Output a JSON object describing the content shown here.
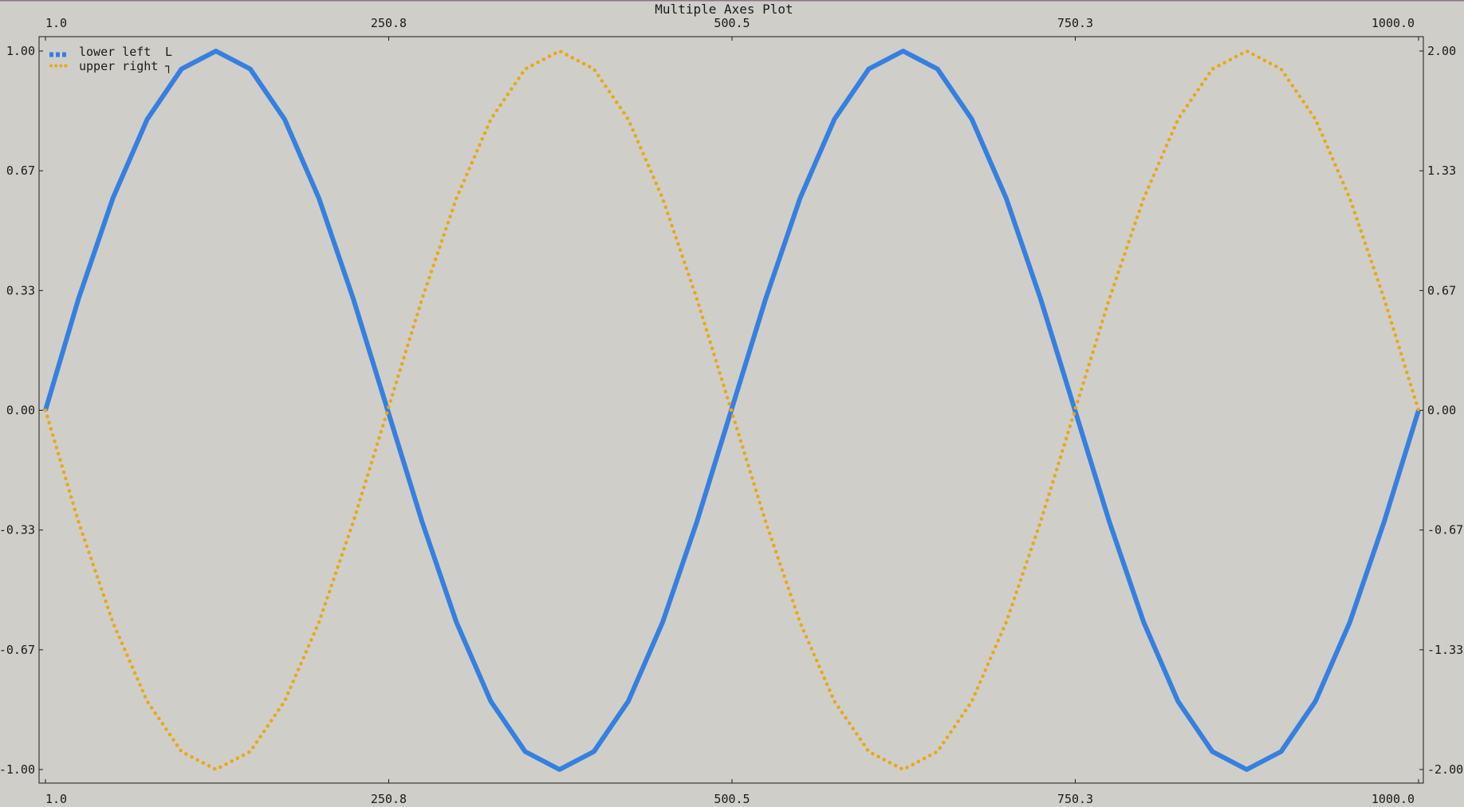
{
  "chart_data": {
    "type": "line",
    "title": "Multiple Axes Plot",
    "x_range": [
      1,
      1000
    ],
    "x_ticks_bottom": [
      "1.0",
      "250.8",
      "500.5",
      "750.3",
      "1000.0"
    ],
    "x_ticks_top": [
      "1.0",
      "250.8",
      "500.5",
      "750.3",
      "1000.0"
    ],
    "y_left_range": [
      -1,
      1
    ],
    "y_left_ticks": [
      "1.00",
      "0.67",
      "0.33",
      "0.00",
      "-0.33",
      "-0.67",
      "-1.00"
    ],
    "y_right_range": [
      -2,
      2
    ],
    "y_right_ticks": [
      "2.00",
      "1.33",
      "0.67",
      "0.00",
      "-0.67",
      "-1.33",
      "-2.00"
    ],
    "grid": false,
    "legend_position": "top-left",
    "series": [
      {
        "name": "lower left",
        "axes": "bottom-left",
        "style": "line",
        "color": "#3580e0",
        "x": [
          1,
          25,
          50,
          75,
          100,
          125,
          150,
          175,
          200,
          225,
          250,
          275,
          300,
          325,
          350,
          375,
          400,
          425,
          450,
          475,
          500,
          525,
          550,
          575,
          600,
          625,
          650,
          675,
          700,
          725,
          750,
          775,
          800,
          825,
          850,
          875,
          900,
          925,
          950,
          975,
          1000
        ],
        "y": [
          0.0,
          0.31,
          0.59,
          0.81,
          0.95,
          1.0,
          0.95,
          0.81,
          0.59,
          0.31,
          0.0,
          -0.31,
          -0.59,
          -0.81,
          -0.95,
          -1.0,
          -0.95,
          -0.81,
          -0.59,
          -0.31,
          0.0,
          0.31,
          0.59,
          0.81,
          0.95,
          1.0,
          0.95,
          0.81,
          0.59,
          0.31,
          0.0,
          -0.31,
          -0.59,
          -0.81,
          -0.95,
          -1.0,
          -0.95,
          -0.81,
          -0.59,
          -0.31,
          0.0
        ]
      },
      {
        "name": "upper right",
        "axes": "top-right",
        "style": "dots",
        "color": "#e8a818",
        "x": [
          1,
          25,
          50,
          75,
          100,
          125,
          150,
          175,
          200,
          225,
          250,
          275,
          300,
          325,
          350,
          375,
          400,
          425,
          450,
          475,
          500,
          525,
          550,
          575,
          600,
          625,
          650,
          675,
          700,
          725,
          750,
          775,
          800,
          825,
          850,
          875,
          900,
          925,
          950,
          975,
          1000
        ],
        "y": [
          0.0,
          -0.62,
          -1.18,
          -1.62,
          -1.9,
          -2.0,
          -1.9,
          -1.62,
          -1.18,
          -0.62,
          0.0,
          0.62,
          1.18,
          1.62,
          1.9,
          2.0,
          1.9,
          1.62,
          1.18,
          0.62,
          0.0,
          -0.62,
          -1.18,
          -1.62,
          -1.9,
          -2.0,
          -1.9,
          -1.62,
          -1.18,
          -0.62,
          0.0,
          0.62,
          1.18,
          1.62,
          1.9,
          2.0,
          1.9,
          1.62,
          1.18,
          0.62,
          0.0
        ]
      }
    ]
  }
}
